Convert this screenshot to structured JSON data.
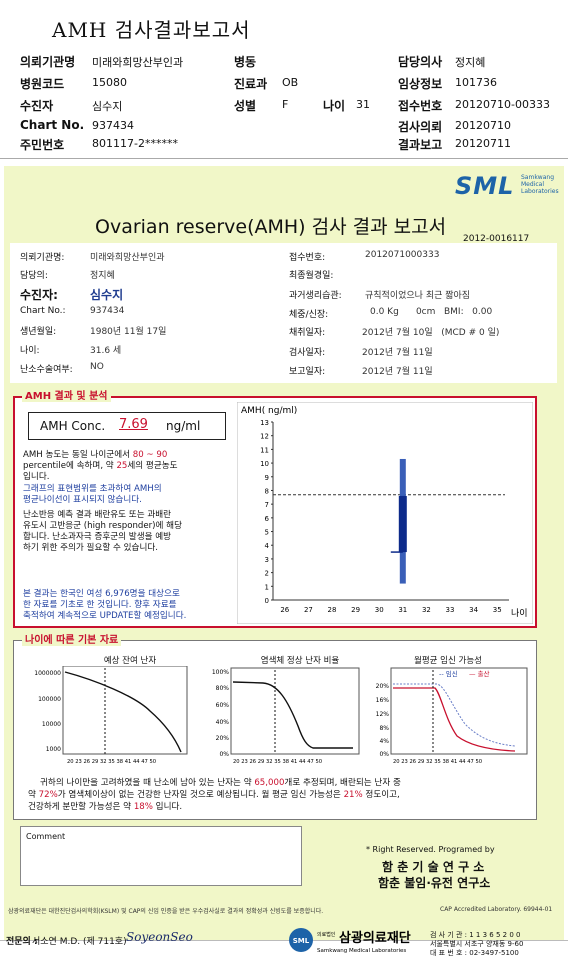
{
  "header": {
    "title": "AMH 검사결과보고서",
    "fields": [
      {
        "label": "의뢰기관명",
        "value": "미래와희망산부인과"
      },
      {
        "label": "병동",
        "value": ""
      },
      {
        "label": "담당의사",
        "value": "정지혜"
      },
      {
        "label": "병원코드",
        "value": "15080"
      },
      {
        "label": "진료과",
        "value": "OB"
      },
      {
        "label": "임상정보",
        "value": "101736"
      },
      {
        "label": "수진자",
        "value": "심수지"
      },
      {
        "label": "성별",
        "value": "F"
      },
      {
        "label": "나이",
        "value": "31"
      },
      {
        "label": "접수번호",
        "value": "20120710-00333"
      },
      {
        "label": "Chart No.",
        "value": "937434"
      },
      {
        "label": "검사의뢰",
        "value": "20120710"
      },
      {
        "label": "주민번호",
        "value": "801117-2******"
      },
      {
        "label": "결과보고",
        "value": "20120711"
      }
    ]
  },
  "report": {
    "logo": "SML",
    "logo_sub": "Samkwang Medical Laboratories",
    "title": "Ovarian reserve(AMH) 검사 결과 보고서",
    "number": "2012-0016117",
    "left": [
      {
        "label": "의뢰기관명:",
        "value": "미래와희망산부인과"
      },
      {
        "label": "담당의:",
        "value": "정지혜"
      },
      {
        "label": "수진자:",
        "value": "심수지"
      },
      {
        "label": "Chart No.:",
        "value": "937434"
      },
      {
        "label": "생년월일:",
        "value": "1980년 11월 17일"
      },
      {
        "label": "나이:",
        "value": "31.6 세"
      },
      {
        "label": "난소수술여부:",
        "value": "NO"
      }
    ],
    "right": [
      {
        "label": "접수번호:",
        "value": "2012071000333"
      },
      {
        "label": "최종월경일:",
        "value": ""
      },
      {
        "label": "과거생리습관:",
        "value": "규칙적이었으나 최근 짧아짐"
      },
      {
        "label": "체중/신장:",
        "value": "0.0 Kg      0cm   BMI:   0.00"
      },
      {
        "label": "채취일자:",
        "value": "2012년 7월 10일   (MCD # 0 일)"
      },
      {
        "label": "검사일자:",
        "value": "2012년 7월 11일"
      },
      {
        "label": "보고일자:",
        "value": "2012년 7월 11일"
      }
    ]
  },
  "amh": {
    "section_title": "AMH 결과 및 분석",
    "conc_label": "AMH Conc.",
    "conc_value": "7.69",
    "conc_unit": "ng/ml",
    "t1a": "AMH 농도는 동일 나이군에서",
    "t1b": "80 ~ 90",
    "t2a": "percentile에 속하며, 약",
    "t2b": "25",
    "t2c": "세의 평균농도",
    "t3": "입니다.",
    "t4": "그래프의 표현범위를 초과하여 AMH의",
    "t5": "평균나이선이 표시되지 않습니다.",
    "t6": "난소반응 예측 결과 배란유도 또는 과배란",
    "t7": "유도시 고반응군 (high responder)에 해당",
    "t8": "합니다. 난소과자극 증후군의 발생을 예방",
    "t9": "하기 위한 주의가 필요할 수 있습니다.",
    "t10": "본 결과는 한국인 여성 6,976명을 대상으로",
    "t11": "한 자료를 기초로 한 것입니다. 향후 자료를",
    "t12": "축적하여 계속적으로 UPDATE할 예정입니다."
  },
  "chart_data": {
    "type": "bar",
    "ylabel": "AMH( ng/ml)",
    "xlabel": "나이",
    "x_ticks": [
      26,
      27,
      28,
      29,
      30,
      31,
      32,
      33,
      34,
      35
    ],
    "y_ticks": [
      0,
      1,
      2,
      3,
      4,
      5,
      6,
      7,
      8,
      9,
      10,
      11,
      12,
      13
    ],
    "xlim": [
      25.5,
      35.5
    ],
    "ylim": [
      0,
      13
    ],
    "range_bar": {
      "x": 31,
      "low": 1.2,
      "high": 10.3
    },
    "iqr_box": {
      "x": 31,
      "low": 3.5,
      "high": 7.6
    },
    "reference_line": 7.69,
    "colors": {
      "bar": "#3a5fb8",
      "box": "#0d2a8a"
    }
  },
  "basics": {
    "section_title": "나이에 따른 기본 자료",
    "chart1": {
      "title": "예상 잔여 난자",
      "yticks": [
        "1000000",
        "100000",
        "10000",
        "1000"
      ]
    },
    "chart2": {
      "title": "염색체 정상 난자 비율",
      "yticks": [
        "100%",
        "80%",
        "60%",
        "40%",
        "20%",
        "0%"
      ]
    },
    "chart3": {
      "title": "월평균 임신 가능성",
      "yticks": [
        "20%",
        "16%",
        "12%",
        "8%",
        "4%",
        "0%"
      ],
      "legend1": "임신",
      "legend2": "출산"
    },
    "xticks": "20 23 26 29 32 35 38 41 44 47 50",
    "s1a": "귀하의 나이만을 고려하였을 때 난소에 남아 있는 난자는 약",
    "s1b": "65,000",
    "s1c": "개로 추정되며, 배란되는 난자 중",
    "s2a": "약",
    "s2b": "72%",
    "s2c": "가 염색체이상이 없는 건강한 난자일 것으로 예상됩니다. 월 평균 임신 가능성은",
    "s2d": "21%",
    "s2e": "정도이고,",
    "s3a": "건강하게 분만할 가능성은 약",
    "s3b": "18%",
    "s3c": "입니다."
  },
  "footer": {
    "comment_label": "Comment",
    "rights": "* Right Reserved. Programed by",
    "inst1": "함 춘 기 술 연 구 소",
    "inst2": "함춘 불임·유전 연구소",
    "footnote": "삼광의료재단은 대한진단검사의학회(KSLM) 및 CAP의 신임 인증을 받은 우수검사실로 결과의 정확성과 신빙도를 보증합니다.",
    "cap": "CAP  Accredited  Laboratory.   69944-01",
    "sig_label": "전문의 :",
    "sig_name": "서소연 M.D. (제 711호)",
    "sig_script": "SoyeonSeo",
    "foundation_small": "의료법인",
    "foundation_name": "삼광의료재단",
    "foundation_sub": "Samkwang Medical Laboratories",
    "contact1": "검 사 기 관 : 1 1 3 6 5 2 0 0",
    "contact2": "서울특별시 서초구 양재동 9-60",
    "contact3": "대 표 번 호 : 02-3497-5100"
  }
}
